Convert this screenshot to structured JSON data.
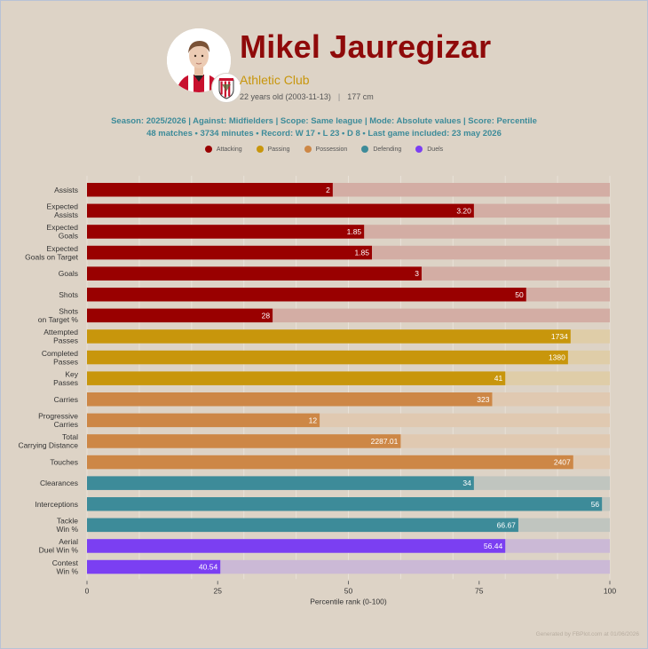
{
  "player": {
    "name": "Mikel Jauregizar",
    "club": "Athletic Club",
    "age_text": "22 years old (2003-11-13)",
    "height": "177 cm"
  },
  "meta": {
    "line1": "Season: 2025/2026 | Against: Midfielders | Scope: Same league | Mode: Absolute values | Score: Percentile",
    "line2": "48 matches • 3734 minutes • Record: W 17 • L 23 • D 8 • Last game included: 23 may 2026"
  },
  "legend": [
    {
      "label": "Attacking",
      "color": "#990000"
    },
    {
      "label": "Passing",
      "color": "#c8960c"
    },
    {
      "label": "Possession",
      "color": "#cd8746"
    },
    {
      "label": "Defending",
      "color": "#3d8b99"
    },
    {
      "label": "Duels",
      "color": "#7b3ff2"
    }
  ],
  "footer": "Generated by FBPlot.com at 01/06/2026",
  "chart_data": {
    "type": "bar",
    "orientation": "horizontal",
    "xlabel": "Percentile rank (0-100)",
    "xlim": [
      0,
      100
    ],
    "xticks": [
      0,
      25,
      50,
      75,
      100
    ],
    "grid": true,
    "metrics": [
      {
        "label": "Assists",
        "group": "Attacking",
        "percentile": 47,
        "value_label": "2"
      },
      {
        "label": "Expected\nAssists",
        "group": "Attacking",
        "percentile": 74,
        "value_label": "3.20"
      },
      {
        "label": "Expected\nGoals",
        "group": "Attacking",
        "percentile": 53,
        "value_label": "1.85"
      },
      {
        "label": "Expected\nGoals on Target",
        "group": "Attacking",
        "percentile": 54.5,
        "value_label": "1.85"
      },
      {
        "label": "Goals",
        "group": "Attacking",
        "percentile": 64,
        "value_label": "3"
      },
      {
        "label": "Shots",
        "group": "Attacking",
        "percentile": 84,
        "value_label": "50"
      },
      {
        "label": "Shots\non Target %",
        "group": "Attacking",
        "percentile": 35.5,
        "value_label": "28"
      },
      {
        "label": "Attempted\nPasses",
        "group": "Passing",
        "percentile": 92.5,
        "value_label": "1734"
      },
      {
        "label": "Completed\nPasses",
        "group": "Passing",
        "percentile": 92,
        "value_label": "1380"
      },
      {
        "label": "Key\nPasses",
        "group": "Passing",
        "percentile": 80,
        "value_label": "41"
      },
      {
        "label": "Carries",
        "group": "Possession",
        "percentile": 77.5,
        "value_label": "323"
      },
      {
        "label": "Progressive\nCarries",
        "group": "Possession",
        "percentile": 44.5,
        "value_label": "12"
      },
      {
        "label": "Total\nCarrying Distance",
        "group": "Possession",
        "percentile": 60,
        "value_label": "2287.01"
      },
      {
        "label": "Touches",
        "group": "Possession",
        "percentile": 93,
        "value_label": "2407"
      },
      {
        "label": "Clearances",
        "group": "Defending",
        "percentile": 74,
        "value_label": "34"
      },
      {
        "label": "Interceptions",
        "group": "Defending",
        "percentile": 98.5,
        "value_label": "56"
      },
      {
        "label": "Tackle\nWin %",
        "group": "Defending",
        "percentile": 82.5,
        "value_label": "66.67"
      },
      {
        "label": "Aerial\nDuel Win %",
        "group": "Duels",
        "percentile": 80,
        "value_label": "56.44"
      },
      {
        "label": "Contest\nWin %",
        "group": "Duels",
        "percentile": 25.5,
        "value_label": "40.54"
      }
    ]
  },
  "colors": {
    "Attacking": {
      "bar": "#990000",
      "track": "#d3ada4"
    },
    "Passing": {
      "bar": "#c8960c",
      "track": "#dfcda8"
    },
    "Possession": {
      "bar": "#cd8746",
      "track": "#e0c9b1"
    },
    "Defending": {
      "bar": "#3d8b99",
      "track": "#c0c5bf"
    },
    "Duels": {
      "bar": "#7b3ff2",
      "track": "#cbb9d6"
    }
  }
}
